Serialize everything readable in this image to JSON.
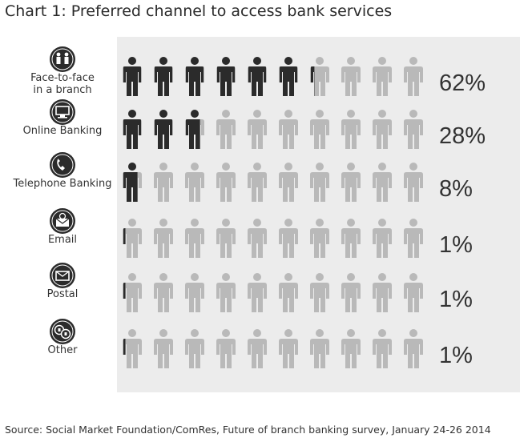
{
  "title": "Chart 1: Preferred channel to access bank services",
  "source": "Source: Social Market Foundation/ComRes, Future of branch banking survey, January 24-26 2014",
  "colors": {
    "filled": "#2b2b2b",
    "empty": "#b9b9b9",
    "panel": "#ececec",
    "icon": "#2b2b2b"
  },
  "chart_data": {
    "type": "pictogram",
    "icons_per_row": 10,
    "unit": "%",
    "categories": [
      {
        "label_lines": [
          "Face-to-face",
          "in a branch"
        ],
        "value": 62,
        "value_label": "62%",
        "icon": "face-to-face-people-icon"
      },
      {
        "label_lines": [
          "Online Banking"
        ],
        "value": 28,
        "value_label": "28%",
        "icon": "computer-screen-icon"
      },
      {
        "label_lines": [
          "Telephone Banking"
        ],
        "value": 8,
        "value_label": "8%",
        "icon": "telephone-icon"
      },
      {
        "label_lines": [
          "Email"
        ],
        "value": 1,
        "value_label": "1%",
        "icon": "email-envelope-icon"
      },
      {
        "label_lines": [
          "Postal"
        ],
        "value": 1,
        "value_label": "1%",
        "icon": "postal-envelope-icon"
      },
      {
        "label_lines": [
          "Other"
        ],
        "value": 1,
        "value_label": "1%",
        "icon": "currency-coins-icon"
      }
    ]
  }
}
